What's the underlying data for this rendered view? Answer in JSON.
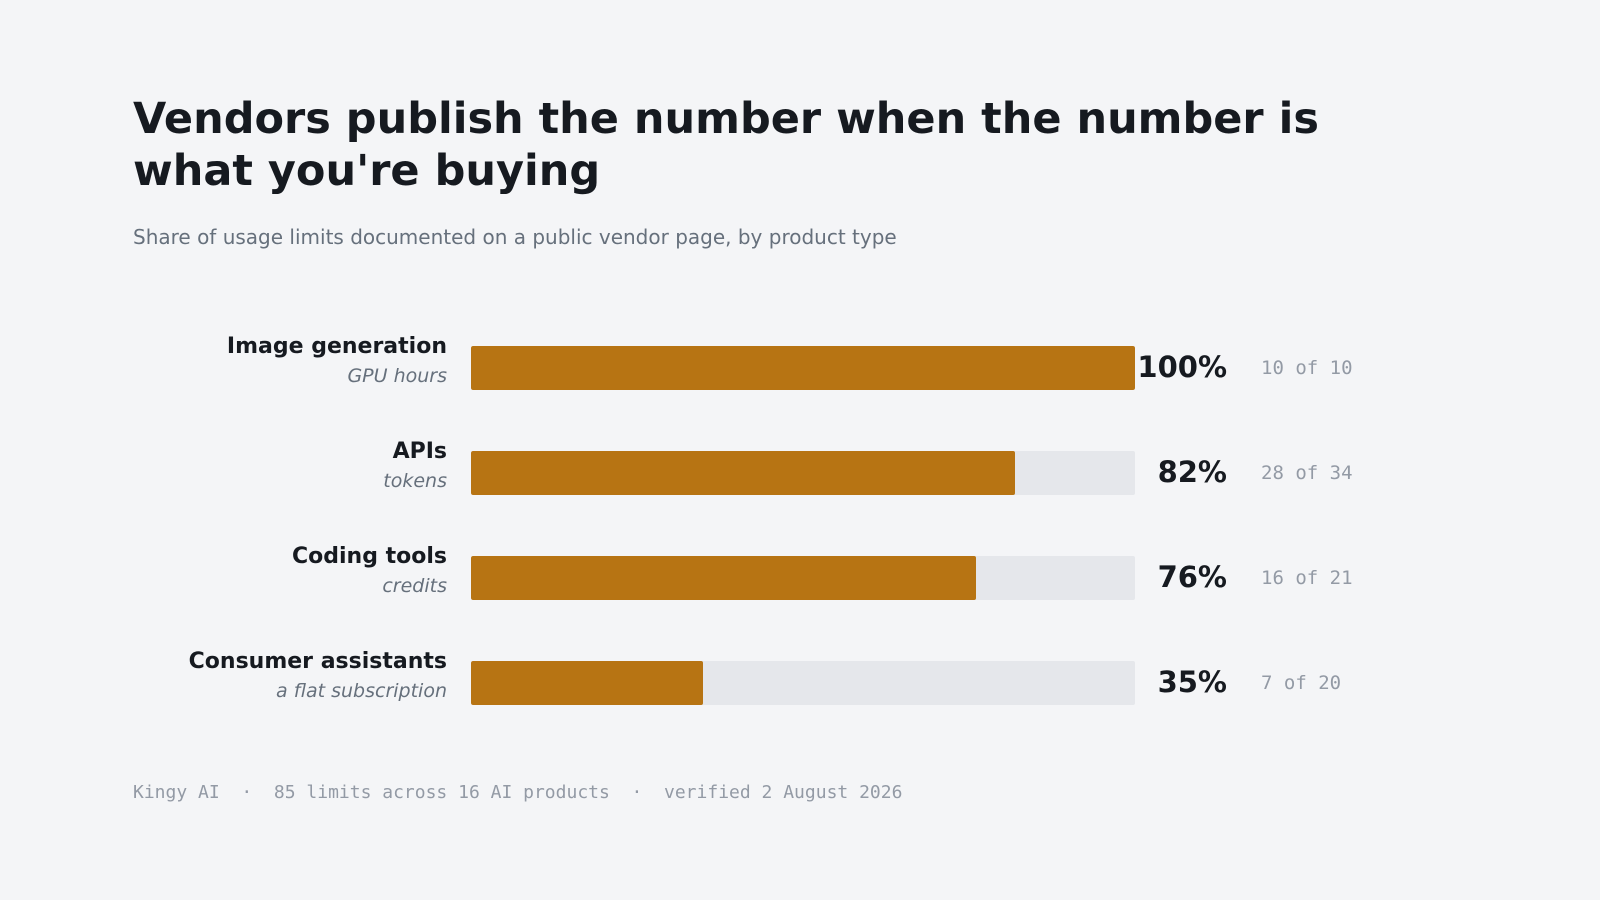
{
  "header": {
    "title": "Vendors publish the number when the number is what you're buying",
    "subtitle": "Share of usage limits documented on a public vendor page, by product type"
  },
  "colors": {
    "bar": "#b77413",
    "track": "#e5e7eb",
    "background": "#f4f5f7"
  },
  "chart_data": {
    "type": "bar",
    "orientation": "horizontal",
    "title": "Vendors publish the number when the number is what you're buying",
    "subtitle": "Share of usage limits documented on a public vendor page, by product type",
    "xlim": [
      0,
      100
    ],
    "grid": false,
    "categories": [
      "Image generation",
      "APIs",
      "Coding tools",
      "Consumer assistants"
    ],
    "units": [
      "GPU hours",
      "tokens",
      "credits",
      "a flat subscription"
    ],
    "values": [
      100,
      82,
      76,
      35
    ],
    "value_labels": [
      "100%",
      "82%",
      "76%",
      "35%"
    ],
    "counts": [
      "10 of 10",
      "28 of 34",
      "16 of 21",
      "7 of 20"
    ]
  },
  "footer": {
    "text": "Kingy AI  ·  85 limits across 16 AI products  ·  verified 2 August 2026"
  }
}
